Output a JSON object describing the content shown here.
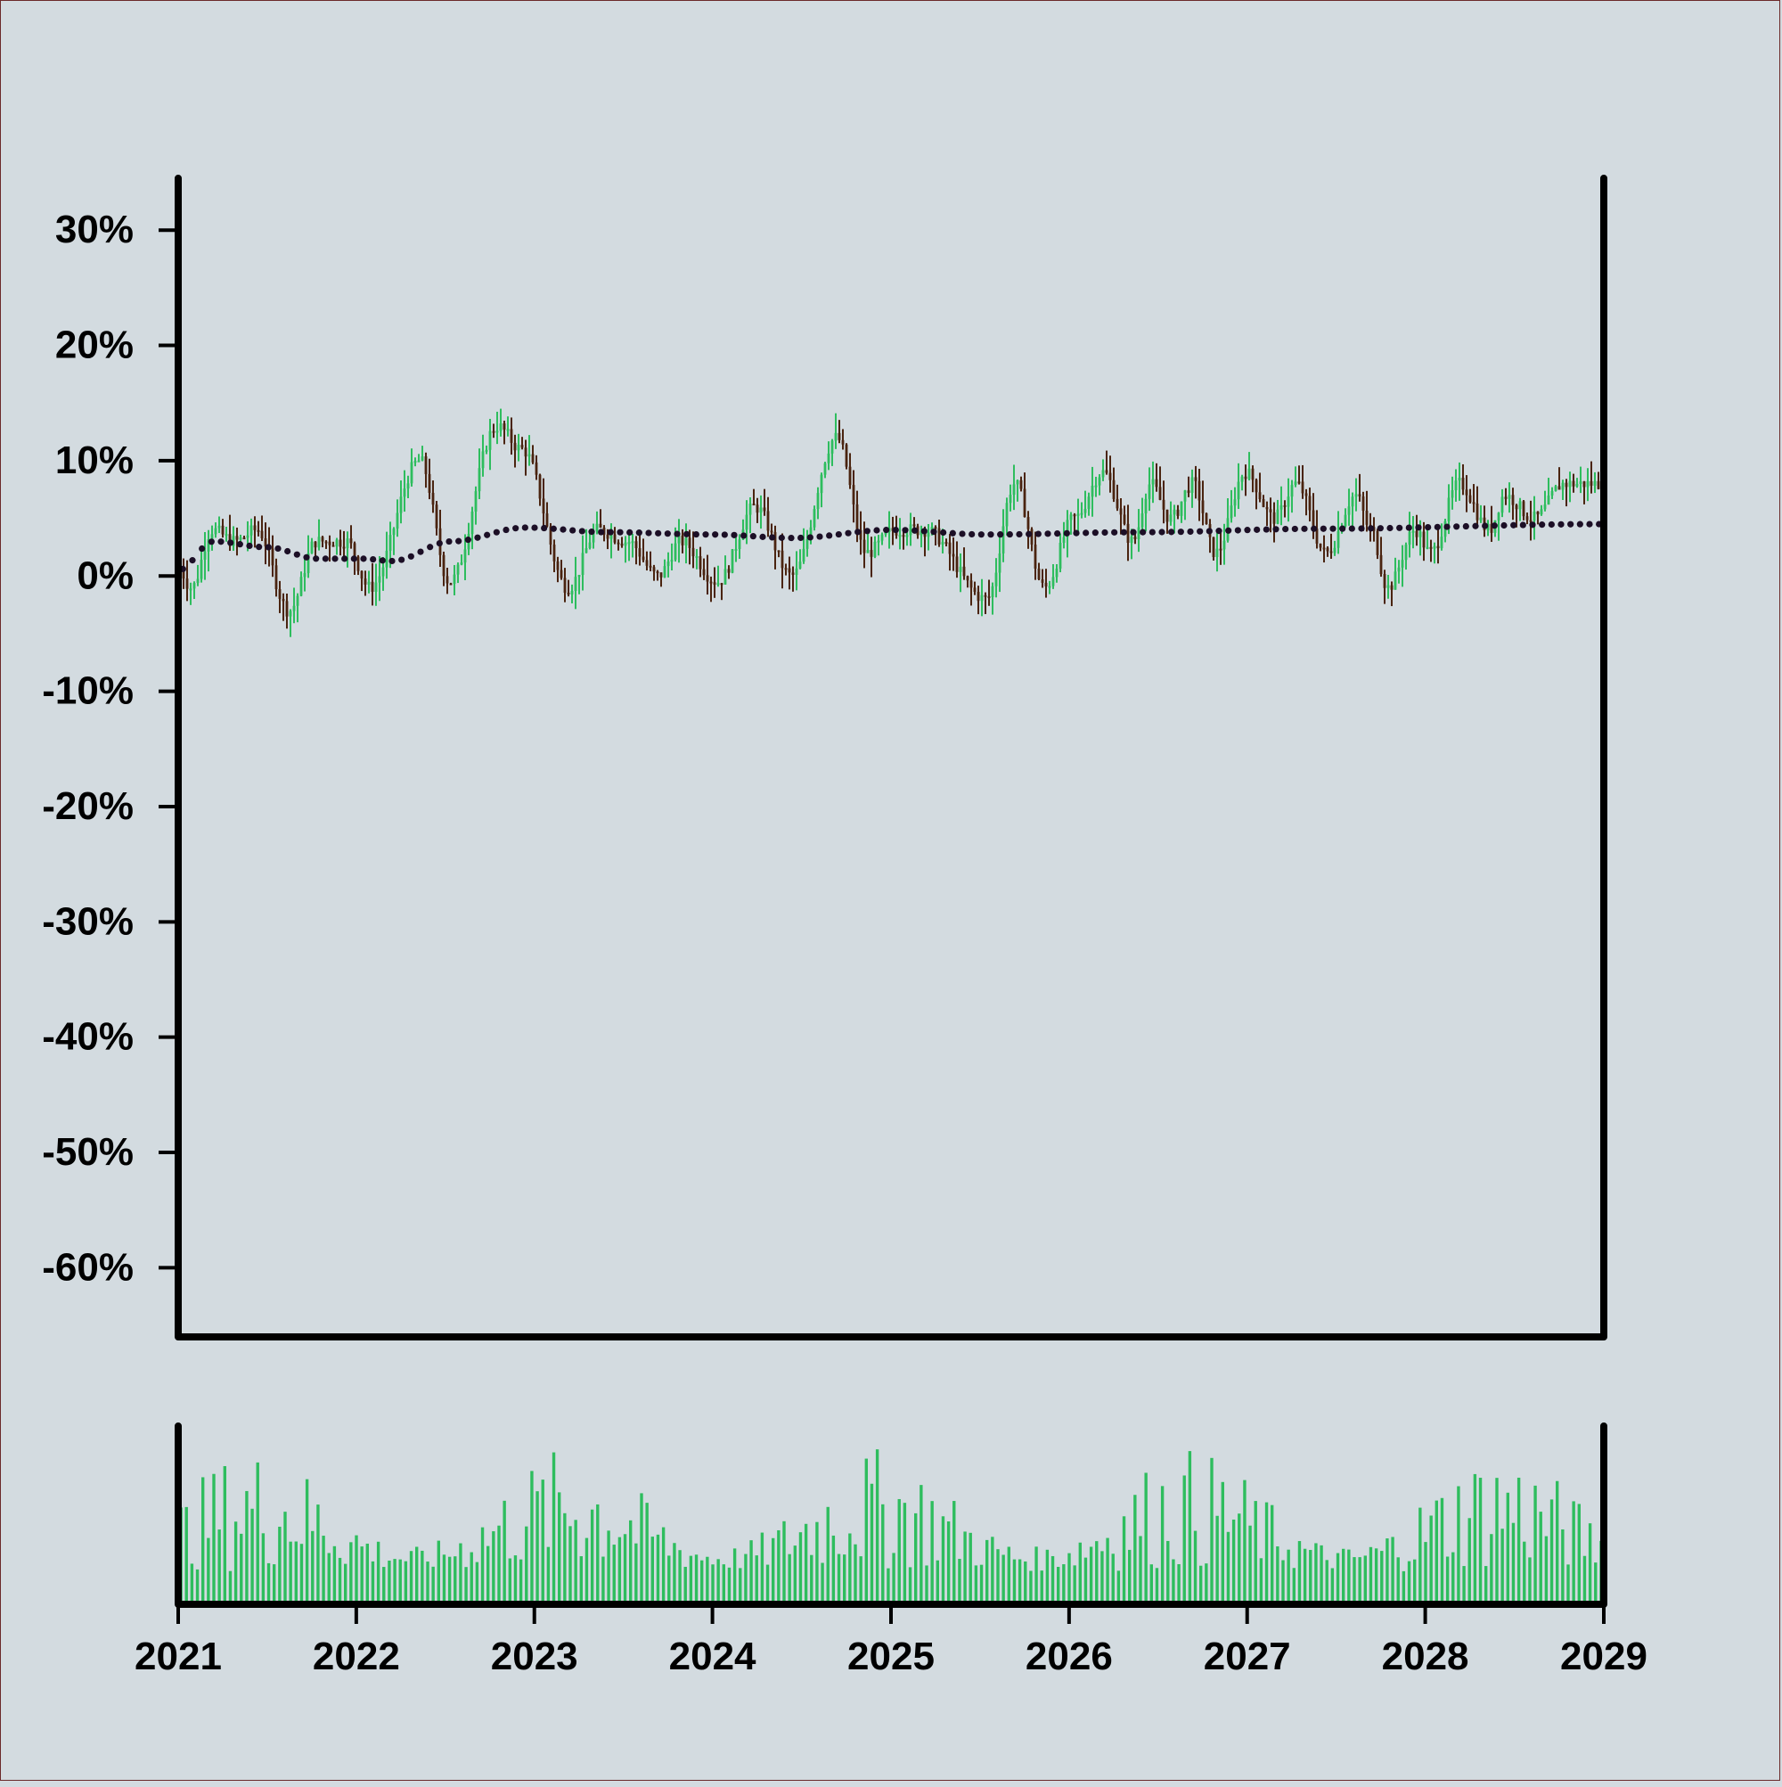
{
  "chart_data": {
    "type": "candlestick",
    "y_ticks": [
      "30%",
      "20%",
      "10%",
      "0%",
      "-10%",
      "-20%",
      "-30%",
      "-40%",
      "-50%",
      "-60%"
    ],
    "y_tick_values": [
      30,
      20,
      10,
      0,
      -10,
      -20,
      -30,
      -40,
      -50,
      -60
    ],
    "ylim": [
      -66,
      34.5
    ],
    "x_ticks": [
      "2021",
      "2022",
      "2023",
      "2024",
      "2025",
      "2026",
      "2027",
      "2028",
      "2029"
    ],
    "xlim": [
      "2021-01-01",
      "2029-01-01"
    ],
    "up_color": "#2ebd5e",
    "down_color": "#4a2410",
    "ma_color": "#1c0f26",
    "volume_color": "#2ebd5e",
    "price_anchors": [
      [
        "2021-01-01",
        1
      ],
      [
        "2021-02-01",
        -1
      ],
      [
        "2021-03-15",
        4
      ],
      [
        "2021-05-01",
        3
      ],
      [
        "2021-06-15",
        4
      ],
      [
        "2021-08-20",
        -3
      ],
      [
        "2021-10-15",
        3
      ],
      [
        "2021-12-15",
        3
      ],
      [
        "2022-02-01",
        -1
      ],
      [
        "2022-05-15",
        10
      ],
      [
        "2022-07-15",
        -0.5
      ],
      [
        "2022-10-20",
        13
      ],
      [
        "2022-12-10",
        11
      ],
      [
        "2023-03-15",
        -1
      ],
      [
        "2023-05-15",
        4
      ],
      [
        "2023-07-15",
        3
      ],
      [
        "2023-09-15",
        0
      ],
      [
        "2023-11-01",
        3
      ],
      [
        "2024-01-15",
        -0.5
      ],
      [
        "2024-04-01",
        6
      ],
      [
        "2024-06-15",
        0
      ],
      [
        "2024-09-15",
        12
      ],
      [
        "2024-11-15",
        2
      ],
      [
        "2025-01-15",
        4
      ],
      [
        "2025-03-15",
        4
      ],
      [
        "2025-07-20",
        -2
      ],
      [
        "2025-09-15",
        8
      ],
      [
        "2025-11-15",
        -1
      ],
      [
        "2026-01-15",
        5
      ],
      [
        "2026-03-15",
        9
      ],
      [
        "2026-05-15",
        3
      ],
      [
        "2026-06-20",
        8
      ],
      [
        "2026-08-01",
        5
      ],
      [
        "2026-09-15",
        8
      ],
      [
        "2026-11-01",
        2
      ],
      [
        "2027-01-01",
        9
      ],
      [
        "2027-03-01",
        5
      ],
      [
        "2027-04-15",
        8
      ],
      [
        "2027-06-15",
        2
      ],
      [
        "2027-08-15",
        7
      ],
      [
        "2027-09-15",
        4
      ],
      [
        "2027-10-20",
        -1
      ],
      [
        "2027-12-15",
        4
      ],
      [
        "2028-01-15",
        2
      ],
      [
        "2028-03-15",
        8
      ],
      [
        "2028-05-15",
        4
      ],
      [
        "2028-06-15",
        7
      ],
      [
        "2028-08-15",
        5
      ],
      [
        "2028-10-15",
        8
      ],
      [
        "2028-12-31",
        8
      ]
    ],
    "ma_anchors": [
      [
        "2021-01-01",
        0.5
      ],
      [
        "2021-03-15",
        3
      ],
      [
        "2021-07-01",
        2.5
      ],
      [
        "2021-10-15",
        1.5
      ],
      [
        "2022-01-15",
        1.5
      ],
      [
        "2022-03-15",
        1.3
      ],
      [
        "2022-07-15",
        3
      ],
      [
        "2022-12-15",
        4.2
      ],
      [
        "2023-06-01",
        3.8
      ],
      [
        "2024-01-01",
        3.6
      ],
      [
        "2024-06-15",
        3.3
      ],
      [
        "2025-01-01",
        4
      ],
      [
        "2025-07-15",
        3.6
      ],
      [
        "2026-06-01",
        3.8
      ],
      [
        "2027-06-01",
        4.1
      ],
      [
        "2028-12-31",
        4.5
      ]
    ]
  }
}
